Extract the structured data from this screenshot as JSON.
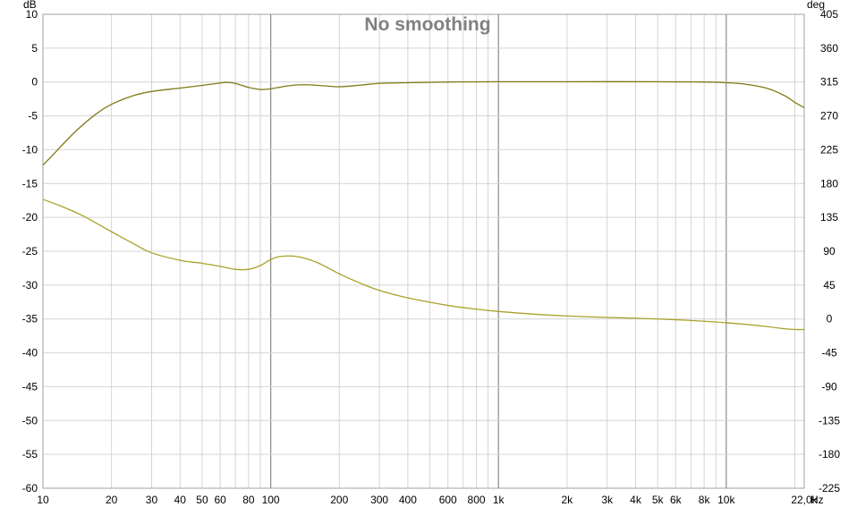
{
  "chart_data": {
    "type": "line",
    "title": "No smoothing",
    "left_unit": "dB",
    "right_unit": "deg",
    "x_unit": "Hz",
    "x_scale": "log",
    "xlim": [
      10,
      22000
    ],
    "ylim_left": [
      -60,
      10
    ],
    "ylim_right": [
      -225,
      405
    ],
    "grid": true,
    "x_ticks": [
      {
        "value": 10,
        "label": "10"
      },
      {
        "value": 20,
        "label": "20"
      },
      {
        "value": 30,
        "label": "30"
      },
      {
        "value": 40,
        "label": "40"
      },
      {
        "value": 50,
        "label": "50"
      },
      {
        "value": 60,
        "label": "60"
      },
      {
        "value": 80,
        "label": "80"
      },
      {
        "value": 100,
        "label": "100"
      },
      {
        "value": 200,
        "label": "200"
      },
      {
        "value": 300,
        "label": "300"
      },
      {
        "value": 400,
        "label": "400"
      },
      {
        "value": 600,
        "label": "600"
      },
      {
        "value": 800,
        "label": "800"
      },
      {
        "value": 1000,
        "label": "1k"
      },
      {
        "value": 2000,
        "label": "2k"
      },
      {
        "value": 3000,
        "label": "3k"
      },
      {
        "value": 4000,
        "label": "4k"
      },
      {
        "value": 5000,
        "label": "5k"
      },
      {
        "value": 6000,
        "label": "6k"
      },
      {
        "value": 8000,
        "label": "8k"
      },
      {
        "value": 10000,
        "label": "10k"
      },
      {
        "value": 22000,
        "label": "22,0k"
      }
    ],
    "y_left_ticks": [
      10,
      5,
      0,
      -5,
      -10,
      -15,
      -20,
      -25,
      -30,
      -35,
      -40,
      -45,
      -50,
      -55,
      -60
    ],
    "y_right_ticks": [
      405,
      360,
      315,
      270,
      225,
      180,
      135,
      90,
      45,
      0,
      -45,
      -90,
      -135,
      -180,
      -225
    ],
    "series": [
      {
        "axis": "left",
        "color": "#7f7a14",
        "points": [
          [
            10,
            -12.3
          ],
          [
            12,
            -9.5
          ],
          [
            14,
            -7.2
          ],
          [
            17,
            -4.8
          ],
          [
            20,
            -3.3
          ],
          [
            25,
            -2.0
          ],
          [
            30,
            -1.4
          ],
          [
            40,
            -0.9
          ],
          [
            50,
            -0.5
          ],
          [
            60,
            -0.15
          ],
          [
            65,
            -0.05
          ],
          [
            70,
            -0.2
          ],
          [
            80,
            -0.8
          ],
          [
            90,
            -1.1
          ],
          [
            100,
            -1.0
          ],
          [
            120,
            -0.55
          ],
          [
            140,
            -0.4
          ],
          [
            170,
            -0.55
          ],
          [
            200,
            -0.7
          ],
          [
            250,
            -0.45
          ],
          [
            300,
            -0.2
          ],
          [
            400,
            -0.1
          ],
          [
            600,
            0.0
          ],
          [
            1000,
            0.05
          ],
          [
            2000,
            0.05
          ],
          [
            5000,
            0.05
          ],
          [
            8000,
            0.0
          ],
          [
            10000,
            -0.1
          ],
          [
            12000,
            -0.3
          ],
          [
            15000,
            -0.9
          ],
          [
            18000,
            -2.0
          ],
          [
            20000,
            -3.0
          ],
          [
            22000,
            -3.8
          ]
        ]
      },
      {
        "axis": "right",
        "color": "#aaa12a",
        "points": [
          [
            10,
            159
          ],
          [
            12,
            150
          ],
          [
            15,
            137
          ],
          [
            20,
            116
          ],
          [
            25,
            100
          ],
          [
            30,
            88
          ],
          [
            40,
            78
          ],
          [
            50,
            74
          ],
          [
            60,
            70
          ],
          [
            70,
            66
          ],
          [
            80,
            66
          ],
          [
            90,
            71
          ],
          [
            100,
            79
          ],
          [
            110,
            83
          ],
          [
            130,
            83
          ],
          [
            160,
            75
          ],
          [
            200,
            60
          ],
          [
            250,
            47
          ],
          [
            300,
            38
          ],
          [
            400,
            28
          ],
          [
            600,
            18
          ],
          [
            800,
            13
          ],
          [
            1000,
            10
          ],
          [
            1500,
            6
          ],
          [
            2000,
            4
          ],
          [
            3000,
            2
          ],
          [
            4000,
            1
          ],
          [
            6000,
            -1
          ],
          [
            8000,
            -3
          ],
          [
            10000,
            -5
          ],
          [
            12000,
            -7
          ],
          [
            15000,
            -10
          ],
          [
            18000,
            -13
          ],
          [
            20000,
            -14
          ],
          [
            22000,
            -14
          ]
        ]
      }
    ]
  }
}
